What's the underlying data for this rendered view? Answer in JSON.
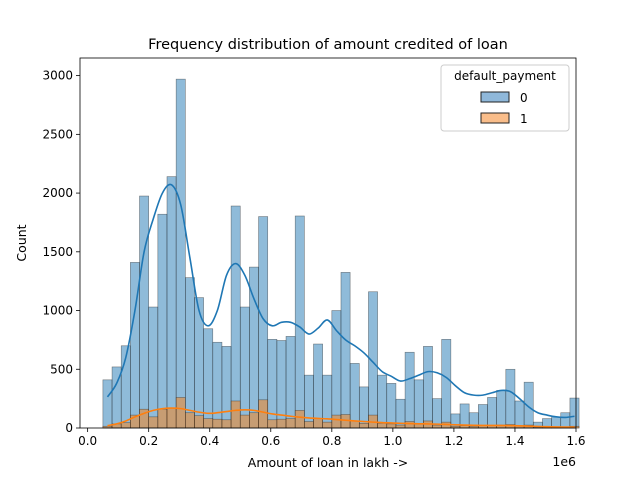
{
  "chart_data": {
    "type": "bar",
    "title": "Frequency distribution of amount credited of loan",
    "xlabel": "Amount of loan in lakh ->",
    "ylabel": "Count",
    "x_offset_text": "1e6",
    "xlim": [
      -0.025,
      1.6
    ],
    "ylim": [
      0,
      3150
    ],
    "x_ticks": [
      0.0,
      0.2,
      0.4,
      0.6,
      0.8,
      1.0,
      1.2,
      1.4,
      1.6
    ],
    "x_tick_labels": [
      "0.0",
      "0.2",
      "0.4",
      "0.6",
      "0.8",
      "1.0",
      "1.2",
      "1.4",
      "1.6"
    ],
    "y_ticks": [
      0,
      500,
      1000,
      1500,
      2000,
      2500,
      3000
    ],
    "y_tick_labels": [
      "0",
      "500",
      "1000",
      "1500",
      "2000",
      "2500",
      "3000"
    ],
    "grid": false,
    "legend": {
      "title": "default_payment",
      "position": "top-right"
    },
    "bin_start": 0.05,
    "bin_width": 0.03,
    "series": [
      {
        "name": "0",
        "color": "#1f77b4",
        "bar_color": "#8fb8da",
        "values": [
          410,
          520,
          700,
          1410,
          1975,
          1030,
          1820,
          2140,
          2970,
          1280,
          1110,
          845,
          730,
          695,
          1890,
          1030,
          1370,
          1800,
          755,
          745,
          780,
          1805,
          450,
          715,
          450,
          1000,
          1325,
          550,
          350,
          1160,
          450,
          380,
          245,
          645,
          410,
          695,
          250,
          755,
          120,
          205,
          130,
          200,
          260,
          320,
          500,
          230,
          390,
          50,
          80,
          95,
          130,
          255
        ],
        "kde": [
          265,
          380,
          600,
          1000,
          1500,
          1780,
          2000,
          2070,
          1900,
          1450,
          1000,
          870,
          1000,
          1300,
          1400,
          1300,
          1100,
          930,
          870,
          900,
          900,
          860,
          800,
          850,
          920,
          830,
          750,
          700,
          640,
          560,
          480,
          440,
          400,
          420,
          450,
          480,
          470,
          430,
          360,
          300,
          280,
          280,
          300,
          320,
          310,
          250,
          180,
          130,
          110,
          95,
          90,
          100
        ]
      },
      {
        "name": "1",
        "color": "#ff7f0e",
        "bar_color": "#f9bd8a",
        "values": [
          15,
          35,
          45,
          110,
          160,
          95,
          160,
          170,
          260,
          130,
          105,
          80,
          75,
          70,
          230,
          110,
          130,
          240,
          70,
          75,
          80,
          150,
          55,
          80,
          50,
          110,
          115,
          60,
          40,
          110,
          40,
          35,
          25,
          55,
          35,
          60,
          25,
          50,
          15,
          20,
          15,
          20,
          20,
          25,
          30,
          20,
          25,
          5,
          8,
          8,
          10,
          15
        ],
        "kde": [
          20,
          35,
          60,
          95,
          125,
          150,
          165,
          170,
          165,
          150,
          135,
          125,
          130,
          140,
          150,
          155,
          150,
          135,
          120,
          110,
          100,
          92,
          86,
          82,
          78,
          72,
          66,
          60,
          55,
          50,
          46,
          43,
          40,
          38,
          36,
          35,
          33,
          30,
          27,
          25,
          23,
          22,
          22,
          22,
          21,
          19,
          16,
          13,
          11,
          9,
          8,
          8
        ]
      }
    ]
  }
}
